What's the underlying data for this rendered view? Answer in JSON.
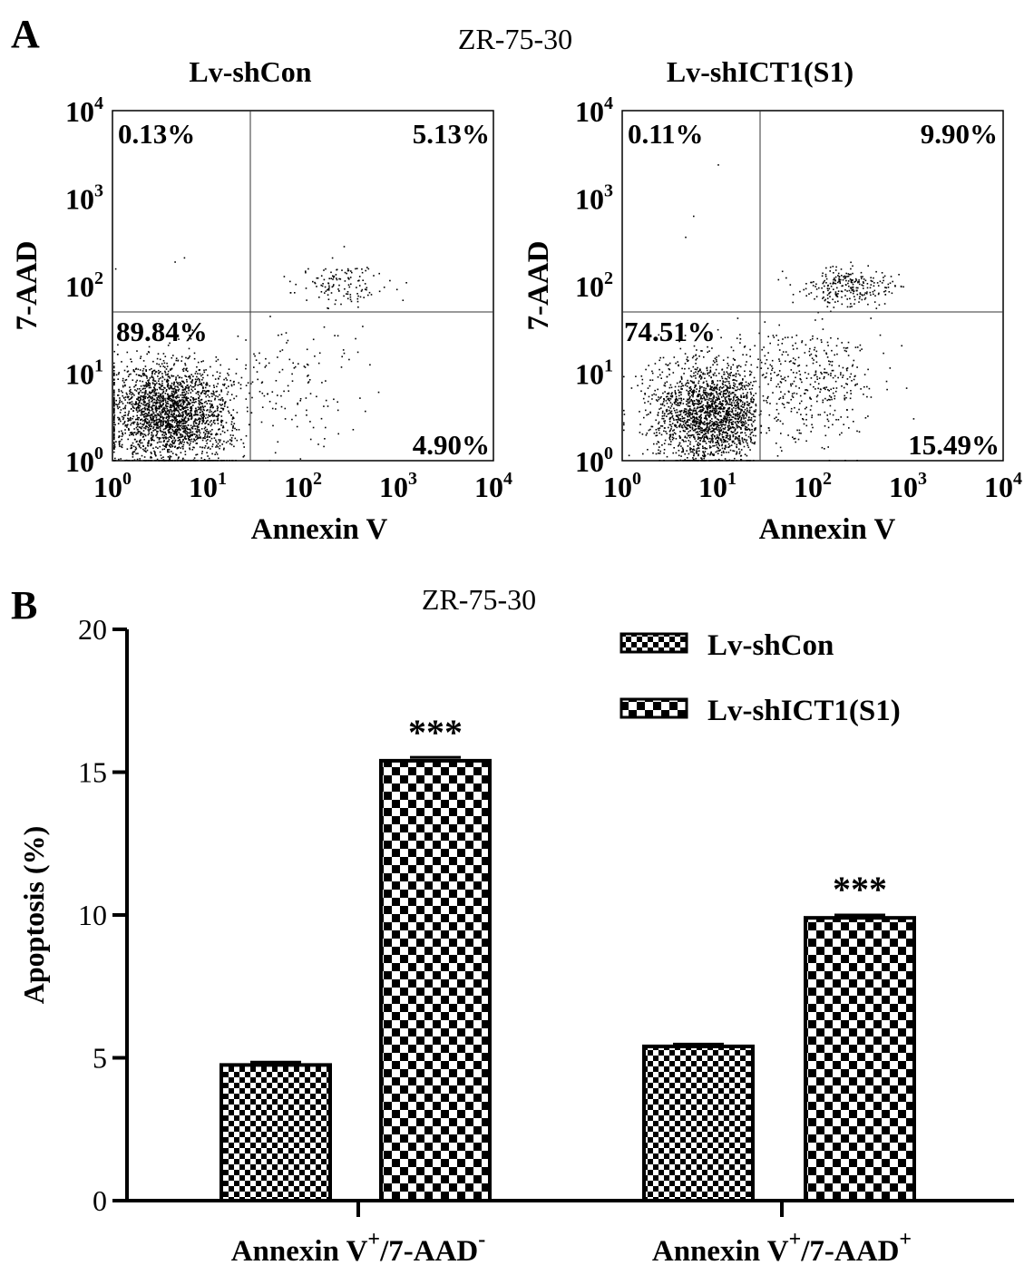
{
  "panel_a": {
    "label": "A",
    "title": "ZR-75-30",
    "plots": [
      {
        "condition": "Lv-shCon",
        "quadrants": {
          "upper_left": "0.13%",
          "upper_right": "5.13%",
          "lower_left": "89.84%",
          "lower_right": "4.90%"
        },
        "xlabel": "Annexin V",
        "ylabel": "7-AAD"
      },
      {
        "condition": "Lv-shICT1(S1)",
        "quadrants": {
          "upper_left": "0.11%",
          "upper_right": "9.90%",
          "lower_left": "74.51%",
          "lower_right": "15.49%"
        },
        "xlabel": "Annexin V",
        "ylabel": "7-AAD"
      }
    ],
    "axis_ticks": [
      "10",
      "10",
      "10",
      "10",
      "10"
    ],
    "axis_tick_exponents": [
      "0",
      "1",
      "2",
      "3",
      "4"
    ]
  },
  "panel_b": {
    "label": "B"
  },
  "chart_data": [
    {
      "type": "scatter",
      "panel": "A-left",
      "title": "Lv-shCon",
      "xlabel": "Annexin V",
      "ylabel": "7-AAD",
      "x_scale": "log",
      "y_scale": "log",
      "xlim": [
        1,
        10000
      ],
      "ylim": [
        1,
        10000
      ],
      "gate": {
        "x": 25,
        "y": 55
      },
      "quadrant_percentages": {
        "upper_left": 0.13,
        "upper_right": 5.13,
        "lower_left": 89.84,
        "lower_right": 4.9
      }
    },
    {
      "type": "scatter",
      "panel": "A-right",
      "title": "Lv-shICT1(S1)",
      "xlabel": "Annexin V",
      "ylabel": "7-AAD",
      "x_scale": "log",
      "y_scale": "log",
      "xlim": [
        1,
        10000
      ],
      "ylim": [
        1,
        10000
      ],
      "gate": {
        "x": 25,
        "y": 55
      },
      "quadrant_percentages": {
        "upper_left": 0.11,
        "upper_right": 9.9,
        "lower_left": 74.51,
        "lower_right": 15.49
      }
    },
    {
      "type": "bar",
      "panel": "B",
      "title": "ZR-75-30",
      "ylabel": "Apoptosis (%)",
      "ylim": [
        0,
        20
      ],
      "yticks": [
        "0",
        "5",
        "10",
        "15",
        "20"
      ],
      "categories": [
        {
          "base": "Annexin V",
          "sup1": "+",
          "mid": "/7-AAD",
          "sup2": "-"
        },
        {
          "base": "Annexin V",
          "sup1": "+",
          "mid": "/7-AAD",
          "sup2": "+"
        }
      ],
      "series": [
        {
          "name": "Lv-shCon",
          "values": [
            4.75,
            5.4
          ],
          "errors": [
            0.1,
            0.08
          ]
        },
        {
          "name": "Lv-shICT1(S1)",
          "values": [
            15.4,
            9.9
          ],
          "errors": [
            0.12,
            0.1
          ]
        }
      ],
      "annotations": [
        "***",
        "***"
      ],
      "legend_position": "top-right"
    }
  ]
}
